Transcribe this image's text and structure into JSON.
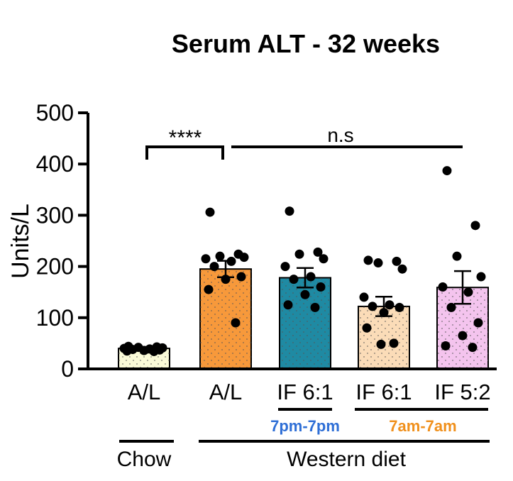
{
  "chart_data": {
    "type": "bar",
    "title": "Serum ALT - 32 weeks",
    "xlabel": "",
    "ylabel": "Units/L",
    "ylim": [
      0,
      500
    ],
    "yticks": [
      0,
      100,
      200,
      300,
      400,
      500
    ],
    "grid": false,
    "categories": [
      "A/L",
      "A/L",
      "IF 6:1",
      "IF 6:1",
      "IF 5:2"
    ],
    "bars": [
      {
        "label": "A/L",
        "mean": 40,
        "sem": 3,
        "color": "#fbfbd8",
        "points": [
          44,
          43,
          42,
          41,
          40,
          39,
          38,
          37,
          36,
          35,
          34
        ]
      },
      {
        "label": "A/L",
        "mean": 195,
        "sem": 16,
        "color": "#f7993b",
        "points": [
          306,
          224,
          220,
          218,
          215,
          210,
          200,
          180,
          175,
          155,
          90
        ]
      },
      {
        "label": "IF 6:1",
        "mean": 178,
        "sem": 19,
        "color": "#1f8aa3",
        "points": [
          308,
          228,
          224,
          215,
          200,
          180,
          175,
          160,
          145,
          125,
          120
        ]
      },
      {
        "label": "IF 6:1",
        "mean": 122,
        "sem": 19,
        "color": "#fbdcb8",
        "points": [
          212,
          210,
          207,
          195,
          140,
          125,
          122,
          120,
          110,
          80,
          50,
          48
        ]
      },
      {
        "label": "IF 5:2",
        "mean": 159,
        "sem": 32,
        "color": "#f4c4ee",
        "points": [
          387,
          280,
          220,
          180,
          160,
          150,
          120,
          90,
          65,
          45,
          42
        ]
      }
    ],
    "annotations": {
      "significance_left": "****",
      "significance_right": "n.s"
    },
    "group_labels": {
      "schedule_blue": "7pm-7pm",
      "schedule_orange": "7am-7am",
      "chow": "Chow",
      "western": "Western diet"
    },
    "colors": {
      "schedule_blue": "#2f6fd6",
      "schedule_orange": "#f0901c"
    }
  }
}
